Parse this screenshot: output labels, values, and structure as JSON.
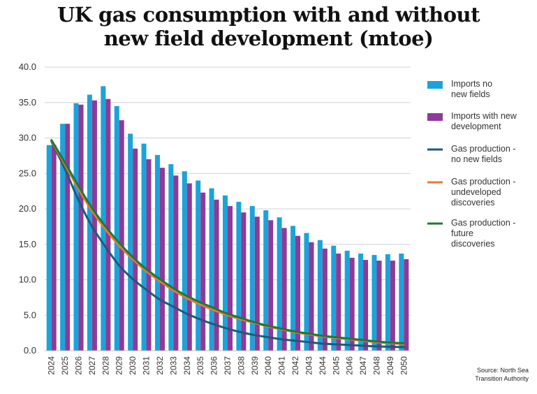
{
  "title_line1": "UK gas consumption with and without",
  "title_line2": "new field development (mtoe)",
  "source_line1": "Source: North Sea",
  "source_line2": "Transition Authority",
  "chart_data": {
    "type": "bar",
    "categories": [
      "2024",
      "2025",
      "2026",
      "2027",
      "2028",
      "2029",
      "2030",
      "2031",
      "2032",
      "2033",
      "2034",
      "2035",
      "2036",
      "2037",
      "2038",
      "2039",
      "2040",
      "2041",
      "2042",
      "2043",
      "2044",
      "2045",
      "2046",
      "2047",
      "2048",
      "2049",
      "2050"
    ],
    "ylim": [
      0,
      40
    ],
    "yticks": [
      "0.0",
      "5.0",
      "10.0",
      "15.0",
      "20.0",
      "25.0",
      "30.0",
      "35.0",
      "40.0"
    ],
    "grid": true,
    "legend_position": "right",
    "series": [
      {
        "name": "Imports no new fields",
        "kind": "bar",
        "color": "#1BA3DA",
        "values": [
          29.0,
          32.0,
          34.9,
          36.1,
          37.3,
          34.5,
          30.6,
          29.2,
          27.6,
          26.3,
          25.3,
          24.0,
          22.9,
          21.9,
          21.0,
          20.4,
          19.8,
          18.8,
          17.6,
          16.6,
          15.6,
          14.8,
          14.1,
          13.7,
          13.5,
          13.6,
          13.7
        ]
      },
      {
        "name": "Imports with new development",
        "kind": "bar",
        "color": "#8E3A97",
        "values": [
          29.0,
          32.0,
          34.7,
          35.3,
          35.5,
          32.5,
          28.5,
          27.0,
          25.8,
          24.7,
          23.6,
          22.3,
          21.3,
          20.4,
          19.5,
          18.9,
          18.4,
          17.3,
          16.2,
          15.3,
          14.4,
          13.7,
          13.1,
          12.8,
          12.7,
          12.7,
          12.9
        ]
      },
      {
        "name": "Gas production - no new fields",
        "kind": "line",
        "color": "#1F5A7A",
        "values": [
          29.5,
          25.6,
          21.2,
          17.5,
          14.6,
          12.0,
          10.1,
          8.6,
          7.2,
          6.2,
          5.2,
          4.4,
          3.7,
          3.1,
          2.6,
          2.2,
          1.9,
          1.6,
          1.4,
          1.2,
          1.0,
          0.9,
          0.8,
          0.7,
          0.6,
          0.55,
          0.5
        ]
      },
      {
        "name": "Gas production - undeveloped discoveries",
        "kind": "line",
        "color": "#E8773E",
        "values": [
          29.6,
          26.2,
          22.8,
          19.7,
          17.1,
          14.8,
          12.9,
          11.2,
          9.8,
          8.5,
          7.4,
          6.5,
          5.7,
          5.0,
          4.4,
          3.9,
          3.4,
          3.0,
          2.6,
          2.3,
          2.0,
          1.8,
          1.6,
          1.4,
          1.2,
          1.05,
          0.95
        ]
      },
      {
        "name": "Gas production - future discoveries",
        "kind": "line",
        "color": "#1F7A33",
        "values": [
          29.7,
          26.5,
          23.2,
          20.1,
          17.5,
          15.2,
          13.2,
          11.5,
          10.1,
          8.8,
          7.7,
          6.8,
          6.0,
          5.2,
          4.6,
          4.0,
          3.5,
          3.1,
          2.7,
          2.4,
          2.1,
          1.9,
          1.7,
          1.5,
          1.3,
          1.15,
          1.05
        ]
      }
    ],
    "legend": [
      {
        "lines": [
          "Imports no",
          "new fields"
        ],
        "kind": "bar",
        "color": "#1BA3DA"
      },
      {
        "lines": [
          "Imports with new",
          "development"
        ],
        "kind": "bar",
        "color": "#8E3A97"
      },
      {
        "lines": [
          "Gas production -",
          "no new fields"
        ],
        "kind": "line",
        "color": "#1F5A7A"
      },
      {
        "lines": [
          "Gas production -",
          "undeveloped",
          "discoveries"
        ],
        "kind": "line",
        "color": "#E8773E"
      },
      {
        "lines": [
          "Gas production -",
          "future",
          "discoveries"
        ],
        "kind": "line",
        "color": "#1F7A33"
      }
    ]
  }
}
